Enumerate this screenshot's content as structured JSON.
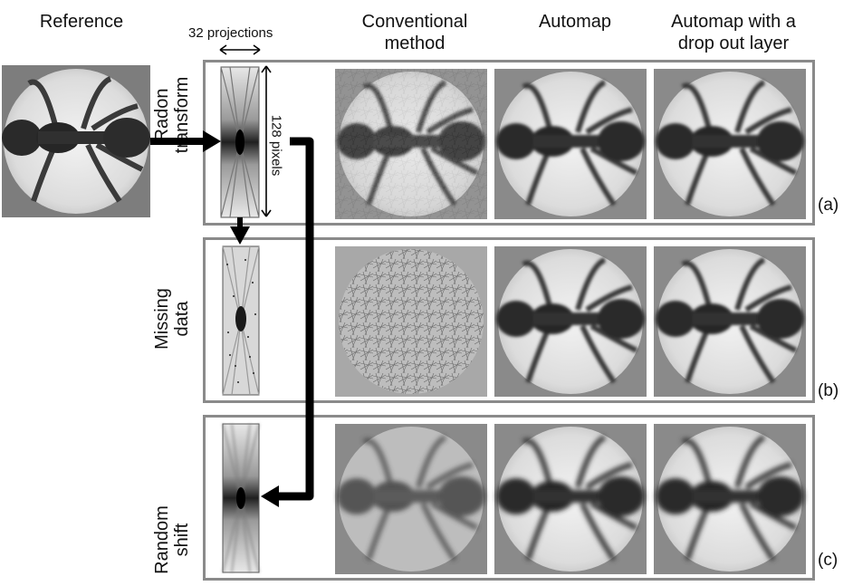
{
  "headers": {
    "reference": "Reference",
    "projections": "32 projections",
    "conventional": "Conventional\nmethod",
    "automap": "Automap",
    "automap_dropout": "Automap with a\ndrop out layer"
  },
  "labels": {
    "radon": "Radon\ntransform",
    "pixels": "128 pixels",
    "missing": "Missing\ndata",
    "random": "Random\nshift"
  },
  "rows": [
    {
      "tag": "(a)"
    },
    {
      "tag": "(b)"
    },
    {
      "tag": "(c)"
    }
  ]
}
